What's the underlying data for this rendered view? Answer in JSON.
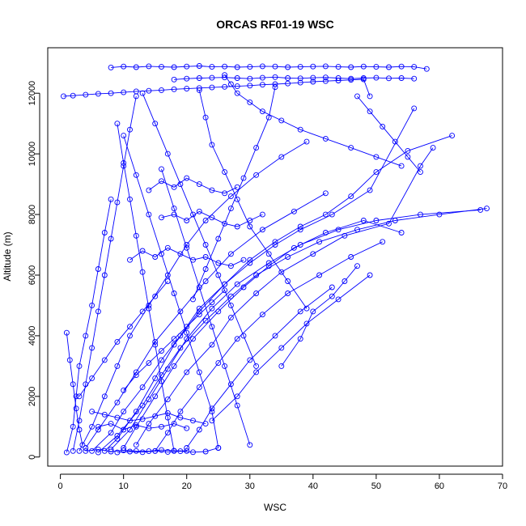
{
  "chart_data": {
    "type": "line",
    "title": "ORCAS RF01-19 WSC",
    "xlabel": "WSC",
    "ylabel": "Altitude (m)",
    "xlim": [
      -2,
      70
    ],
    "ylim": [
      -300,
      13500
    ],
    "x_ticks": [
      0,
      10,
      20,
      30,
      40,
      50,
      60,
      70
    ],
    "y_ticks": [
      0,
      2000,
      4000,
      6000,
      8000,
      10000,
      12000
    ],
    "x_tick_labels": [
      "0",
      "10",
      "20",
      "30",
      "40",
      "50",
      "60",
      "70"
    ],
    "y_tick_labels": [
      "0",
      "2000",
      "4000",
      "6000",
      "8000",
      "10000",
      "12000"
    ],
    "grid": false,
    "marker": "open-circle",
    "line_color": "#0000ff",
    "series": [
      {
        "x": [
          7,
          9,
          12,
          15,
          18,
          22,
          26,
          30,
          34,
          38,
          42,
          46,
          50,
          55,
          62
        ],
        "y": [
          200,
          600,
          1500,
          2600,
          3700,
          4800,
          5700,
          6500,
          7100,
          7600,
          8000,
          8600,
          9400,
          10100,
          10600
        ]
      },
      {
        "x": [
          8,
          11,
          14,
          17,
          20,
          24,
          28,
          33,
          38,
          44,
          50,
          57,
          66.5
        ],
        "y": [
          250,
          900,
          1900,
          2900,
          3900,
          4900,
          5700,
          6400,
          7000,
          7500,
          7800,
          8000,
          8150
        ]
      },
      {
        "x": [
          6,
          9,
          13,
          16,
          19,
          23,
          27,
          31,
          36,
          41,
          47,
          53,
          60,
          67.5
        ],
        "y": [
          150,
          700,
          1700,
          2700,
          3600,
          4500,
          5300,
          6000,
          6600,
          7100,
          7500,
          7800,
          8000,
          8200
        ]
      },
      {
        "x": [
          10,
          12,
          15,
          18,
          21,
          25,
          29,
          33,
          37,
          42,
          48,
          54
        ],
        "y": [
          300,
          1000,
          2000,
          3000,
          3900,
          4800,
          5600,
          6300,
          6900,
          7400,
          7800,
          7400
        ]
      },
      {
        "x": [
          5,
          8,
          10,
          13,
          16,
          19,
          22,
          26,
          30,
          34,
          38,
          43,
          49,
          56
        ],
        "y": [
          200,
          800,
          1500,
          2300,
          3200,
          4000,
          4900,
          5700,
          6400,
          7000,
          7500,
          8000,
          8800,
          11500
        ]
      },
      {
        "x": [
          12,
          14,
          17,
          20,
          24,
          27,
          31,
          35,
          40,
          45,
          52,
          57,
          59
        ],
        "y": [
          400,
          1100,
          1900,
          2800,
          3700,
          4600,
          5400,
          6100,
          6700,
          7300,
          7700,
          9600,
          10200
        ]
      },
      {
        "x": [
          4,
          6,
          9,
          12,
          15,
          19,
          23,
          27,
          32,
          37,
          42
        ],
        "y": [
          300,
          900,
          1800,
          2800,
          3800,
          4800,
          5800,
          6700,
          7500,
          8100,
          8700
        ]
      },
      {
        "x": [
          15,
          17,
          19,
          22,
          25,
          28,
          32,
          36,
          41,
          46,
          51
        ],
        "y": [
          200,
          800,
          1500,
          2300,
          3100,
          3900,
          4700,
          5400,
          6000,
          6600,
          7100
        ]
      },
      {
        "x": [
          3,
          5,
          7,
          9,
          11,
          14,
          17,
          20,
          23,
          27,
          31,
          35,
          39
        ],
        "y": [
          200,
          1000,
          2000,
          3000,
          4000,
          5000,
          6000,
          7000,
          7800,
          8600,
          9300,
          9900,
          10400
        ]
      },
      {
        "x": [
          20,
          22,
          24,
          27,
          30,
          34,
          38,
          43
        ],
        "y": [
          300,
          900,
          1600,
          2400,
          3200,
          4000,
          4800,
          5600
        ]
      },
      {
        "x": [
          2,
          3,
          4,
          5,
          6,
          7,
          8,
          9,
          10,
          11,
          12
        ],
        "y": [
          200,
          1200,
          2400,
          3600,
          4800,
          6000,
          7200,
          8400,
          9600,
          10800,
          11900
        ]
      },
      {
        "x": [
          1,
          2,
          2.5,
          3,
          4,
          5,
          6,
          7,
          8
        ],
        "y": [
          150,
          1000,
          2000,
          3000,
          4000,
          5000,
          6200,
          7400,
          8500
        ]
      },
      {
        "x": [
          25,
          24,
          22,
          20,
          18,
          16,
          14,
          12,
          10
        ],
        "y": [
          300,
          1500,
          2800,
          4100,
          5400,
          6700,
          8000,
          9300,
          10600
        ]
      },
      {
        "x": [
          18,
          17,
          16,
          15,
          14,
          13,
          12,
          11,
          10,
          9
        ],
        "y": [
          200,
          1300,
          2500,
          3700,
          4900,
          6100,
          7300,
          8500,
          9700,
          11000
        ]
      },
      {
        "x": [
          30,
          28,
          26,
          24,
          22,
          20,
          18,
          16
        ],
        "y": [
          400,
          1700,
          3000,
          4300,
          5600,
          6900,
          8200,
          9500
        ]
      },
      {
        "x": [
          13,
          15,
          17,
          19,
          21,
          23,
          25,
          27,
          29,
          31
        ],
        "y": [
          12000,
          11000,
          10000,
          9000,
          8000,
          7000,
          6000,
          5000,
          4000,
          3000
        ]
      },
      {
        "x": [
          22,
          23,
          24,
          26,
          28,
          30,
          33,
          36,
          39
        ],
        "y": [
          12100,
          11200,
          10300,
          9400,
          8500,
          7600,
          6700,
          5800,
          4900
        ]
      },
      {
        "x": [
          34,
          33,
          31,
          29,
          27,
          25,
          23,
          21
        ],
        "y": [
          12200,
          11200,
          10200,
          9200,
          8200,
          7200,
          6200,
          5200
        ]
      },
      {
        "x": [
          8,
          10,
          12,
          14,
          16,
          18,
          20,
          22,
          24,
          26,
          28,
          30,
          32,
          34,
          36,
          38,
          40,
          42,
          44,
          46,
          48,
          50,
          52,
          54,
          56,
          58
        ],
        "y": [
          12850,
          12880,
          12860,
          12890,
          12870,
          12860,
          12880,
          12900,
          12870,
          12880,
          12860,
          12870,
          12890,
          12880,
          12860,
          12870,
          12880,
          12890,
          12870,
          12860,
          12880,
          12870,
          12860,
          12880,
          12870,
          12800
        ]
      },
      {
        "x": [
          0.5,
          2,
          4,
          6,
          8,
          10,
          12,
          14,
          16,
          18,
          20,
          22,
          24,
          26,
          28,
          30,
          32,
          34,
          36,
          38,
          40,
          42,
          44,
          46,
          48,
          49
        ],
        "y": [
          11900,
          11920,
          11950,
          11980,
          12000,
          12030,
          12060,
          12080,
          12100,
          12130,
          12150,
          12170,
          12190,
          12210,
          12230,
          12250,
          12280,
          12300,
          12320,
          12350,
          12380,
          12400,
          12420,
          12440,
          12460,
          11900
        ]
      },
      {
        "x": [
          18,
          20,
          22,
          24,
          26,
          28,
          30,
          32,
          34,
          36,
          38,
          40,
          42,
          44,
          46,
          48,
          50,
          52,
          54,
          56
        ],
        "y": [
          12450,
          12480,
          12500,
          12510,
          12520,
          12500,
          12480,
          12510,
          12530,
          12500,
          12490,
          12510,
          12520,
          12500,
          12480,
          12500,
          12510,
          12490,
          12500,
          12480
        ]
      },
      {
        "x": [
          26,
          27,
          28,
          30,
          32,
          35,
          38,
          42,
          46,
          50,
          54
        ],
        "y": [
          12600,
          12300,
          12000,
          11700,
          11400,
          11100,
          10800,
          10500,
          10200,
          9900,
          9600
        ]
      },
      {
        "x": [
          47,
          49,
          51,
          53,
          55,
          57
        ],
        "y": [
          11900,
          11400,
          10900,
          10400,
          9900,
          9400
        ]
      },
      {
        "x": [
          5,
          7,
          9,
          11,
          13,
          15,
          17,
          19,
          21,
          23
        ],
        "y": [
          1500,
          1400,
          1300,
          1200,
          1250,
          1350,
          1450,
          1300,
          1200,
          1100
        ]
      },
      {
        "x": [
          6,
          8,
          10,
          12,
          14,
          16,
          18,
          20
        ],
        "y": [
          1000,
          1100,
          900,
          1050,
          950,
          1000,
          1100,
          950
        ]
      },
      {
        "x": [
          4,
          6,
          8,
          10,
          12,
          14,
          16,
          18,
          20
        ],
        "y": [
          200,
          250,
          180,
          220,
          200,
          190,
          230,
          210,
          200
        ]
      },
      {
        "x": [
          9,
          11,
          13,
          15,
          17,
          19,
          21,
          23,
          25
        ],
        "y": [
          150,
          180,
          160,
          200,
          170,
          190,
          160,
          180,
          300
        ]
      },
      {
        "x": [
          3,
          5,
          7,
          9,
          11,
          13,
          15,
          17
        ],
        "y": [
          2000,
          2600,
          3200,
          3800,
          4300,
          4800,
          5300,
          5800
        ]
      },
      {
        "x": [
          10,
          12,
          14,
          16,
          18,
          20,
          22,
          24,
          26
        ],
        "y": [
          2200,
          2700,
          3100,
          3500,
          3900,
          4300,
          4700,
          5100,
          5500
        ]
      },
      {
        "x": [
          14,
          16,
          18,
          20,
          22,
          24,
          26,
          28
        ],
        "y": [
          8800,
          9100,
          8900,
          9200,
          9000,
          8800,
          8700,
          8900
        ]
      },
      {
        "x": [
          16,
          18,
          20,
          22,
          24,
          26,
          28,
          30,
          32
        ],
        "y": [
          7900,
          8000,
          7800,
          8100,
          7900,
          7700,
          7600,
          7800,
          8000
        ]
      },
      {
        "x": [
          11,
          13,
          15,
          17,
          19,
          21,
          23,
          25,
          27,
          29
        ],
        "y": [
          6500,
          6800,
          6600,
          6900,
          6700,
          6500,
          6600,
          6400,
          6300,
          6500
        ]
      },
      {
        "x": [
          1,
          1.5,
          2,
          2.5,
          3,
          3.5
        ],
        "y": [
          4100,
          3200,
          2400,
          1600,
          900,
          400
        ]
      },
      {
        "x": [
          35,
          38,
          40,
          43,
          45,
          47
        ],
        "y": [
          3000,
          3900,
          4800,
          5300,
          5800,
          6300
        ]
      },
      {
        "x": [
          24,
          28,
          31,
          35,
          39,
          44,
          49
        ],
        "y": [
          1200,
          2000,
          2800,
          3600,
          4400,
          5200,
          6000
        ]
      }
    ]
  }
}
